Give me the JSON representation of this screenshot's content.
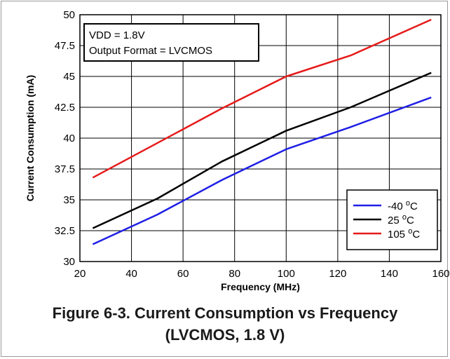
{
  "chart_data": {
    "type": "line",
    "xlabel": "Frequency (MHz)",
    "ylabel": "Current Consumption (mA)",
    "xlim": [
      20,
      160
    ],
    "ylim": [
      30,
      50
    ],
    "xticks": [
      "20",
      "40",
      "60",
      "80",
      "100",
      "120",
      "140",
      "160"
    ],
    "yticks": [
      "30",
      "32.5",
      "35",
      "37.5",
      "40",
      "42.5",
      "45",
      "47.5",
      "50"
    ],
    "grid": true,
    "annotation": [
      "VDD = 1.8V",
      "Output Format = LVCMOS"
    ],
    "legend_position": "bottom-right",
    "series": [
      {
        "name": "-40 °C",
        "label_main": "-40 ",
        "label_sup": "o",
        "label_unit": "C",
        "color": "#1f1fe6",
        "x": [
          25,
          50,
          75,
          100,
          125,
          156.25
        ],
        "y": [
          31.4,
          33.8,
          36.6,
          39.1,
          40.9,
          43.3
        ]
      },
      {
        "name": "25 °C",
        "label_main": "25 ",
        "label_sup": "o",
        "label_unit": "C",
        "color": "#000000",
        "x": [
          25,
          50,
          75,
          100,
          125,
          156.25
        ],
        "y": [
          32.7,
          35.1,
          38.1,
          40.6,
          42.5,
          45.3
        ]
      },
      {
        "name": "105 °C",
        "label_main": "105 ",
        "label_sup": "o",
        "label_unit": "C",
        "color": "#e61a1a",
        "x": [
          25,
          50,
          75,
          100,
          125,
          156.25
        ],
        "y": [
          36.8,
          39.6,
          42.4,
          45.0,
          46.7,
          49.6
        ]
      }
    ]
  },
  "caption": {
    "line1": "Figure 6-3. Current Consumption vs Frequency",
    "line2": "(LVCMOS, 1.8 V)"
  }
}
